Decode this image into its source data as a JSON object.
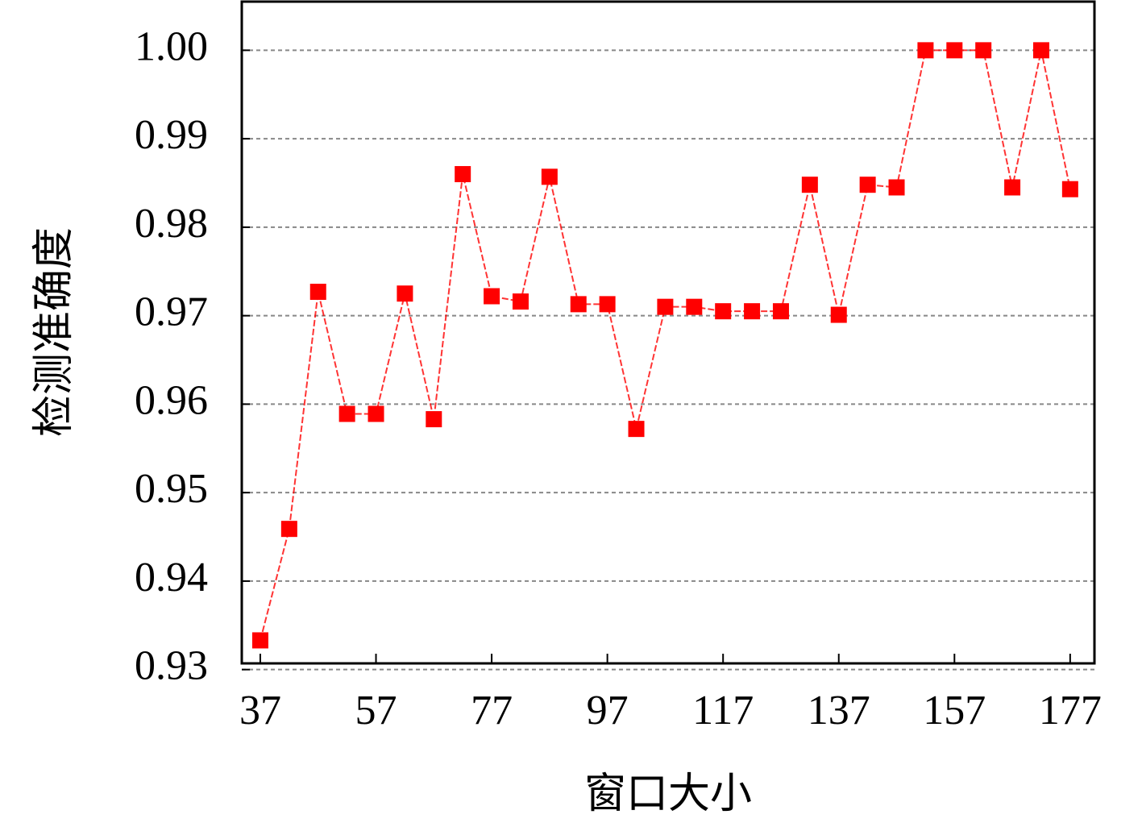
{
  "chart_data": {
    "type": "line",
    "x_label": "窗口大小",
    "y_label": "检测准确度",
    "x": [
      37,
      42,
      47,
      52,
      57,
      62,
      67,
      72,
      77,
      82,
      87,
      92,
      97,
      102,
      107,
      112,
      117,
      122,
      127,
      132,
      137,
      142,
      147,
      152,
      157,
      162,
      167,
      172,
      177
    ],
    "values": [
      0.9333,
      0.9459,
      0.9727,
      0.9589,
      0.9589,
      0.9725,
      0.9583,
      0.986,
      0.9722,
      0.9716,
      0.9857,
      0.9713,
      0.9713,
      0.9572,
      0.971,
      0.971,
      0.9705,
      0.9705,
      0.9705,
      0.9848,
      0.9701,
      0.9848,
      0.9845,
      1.0,
      1.0,
      1.0,
      0.9845,
      1.0,
      0.9843
    ],
    "color": "#ff0000",
    "xlim": [
      33.8,
      181.2
    ],
    "ylim": [
      0.9307,
      1.0055
    ],
    "xticks": [
      37,
      57,
      77,
      97,
      117,
      137,
      157,
      177
    ],
    "yticks": [
      0.93,
      0.94,
      0.95,
      0.96,
      0.97,
      0.98,
      0.99,
      {
        "value": 1,
        "label": "1.00"
      }
    ],
    "grid": true
  }
}
